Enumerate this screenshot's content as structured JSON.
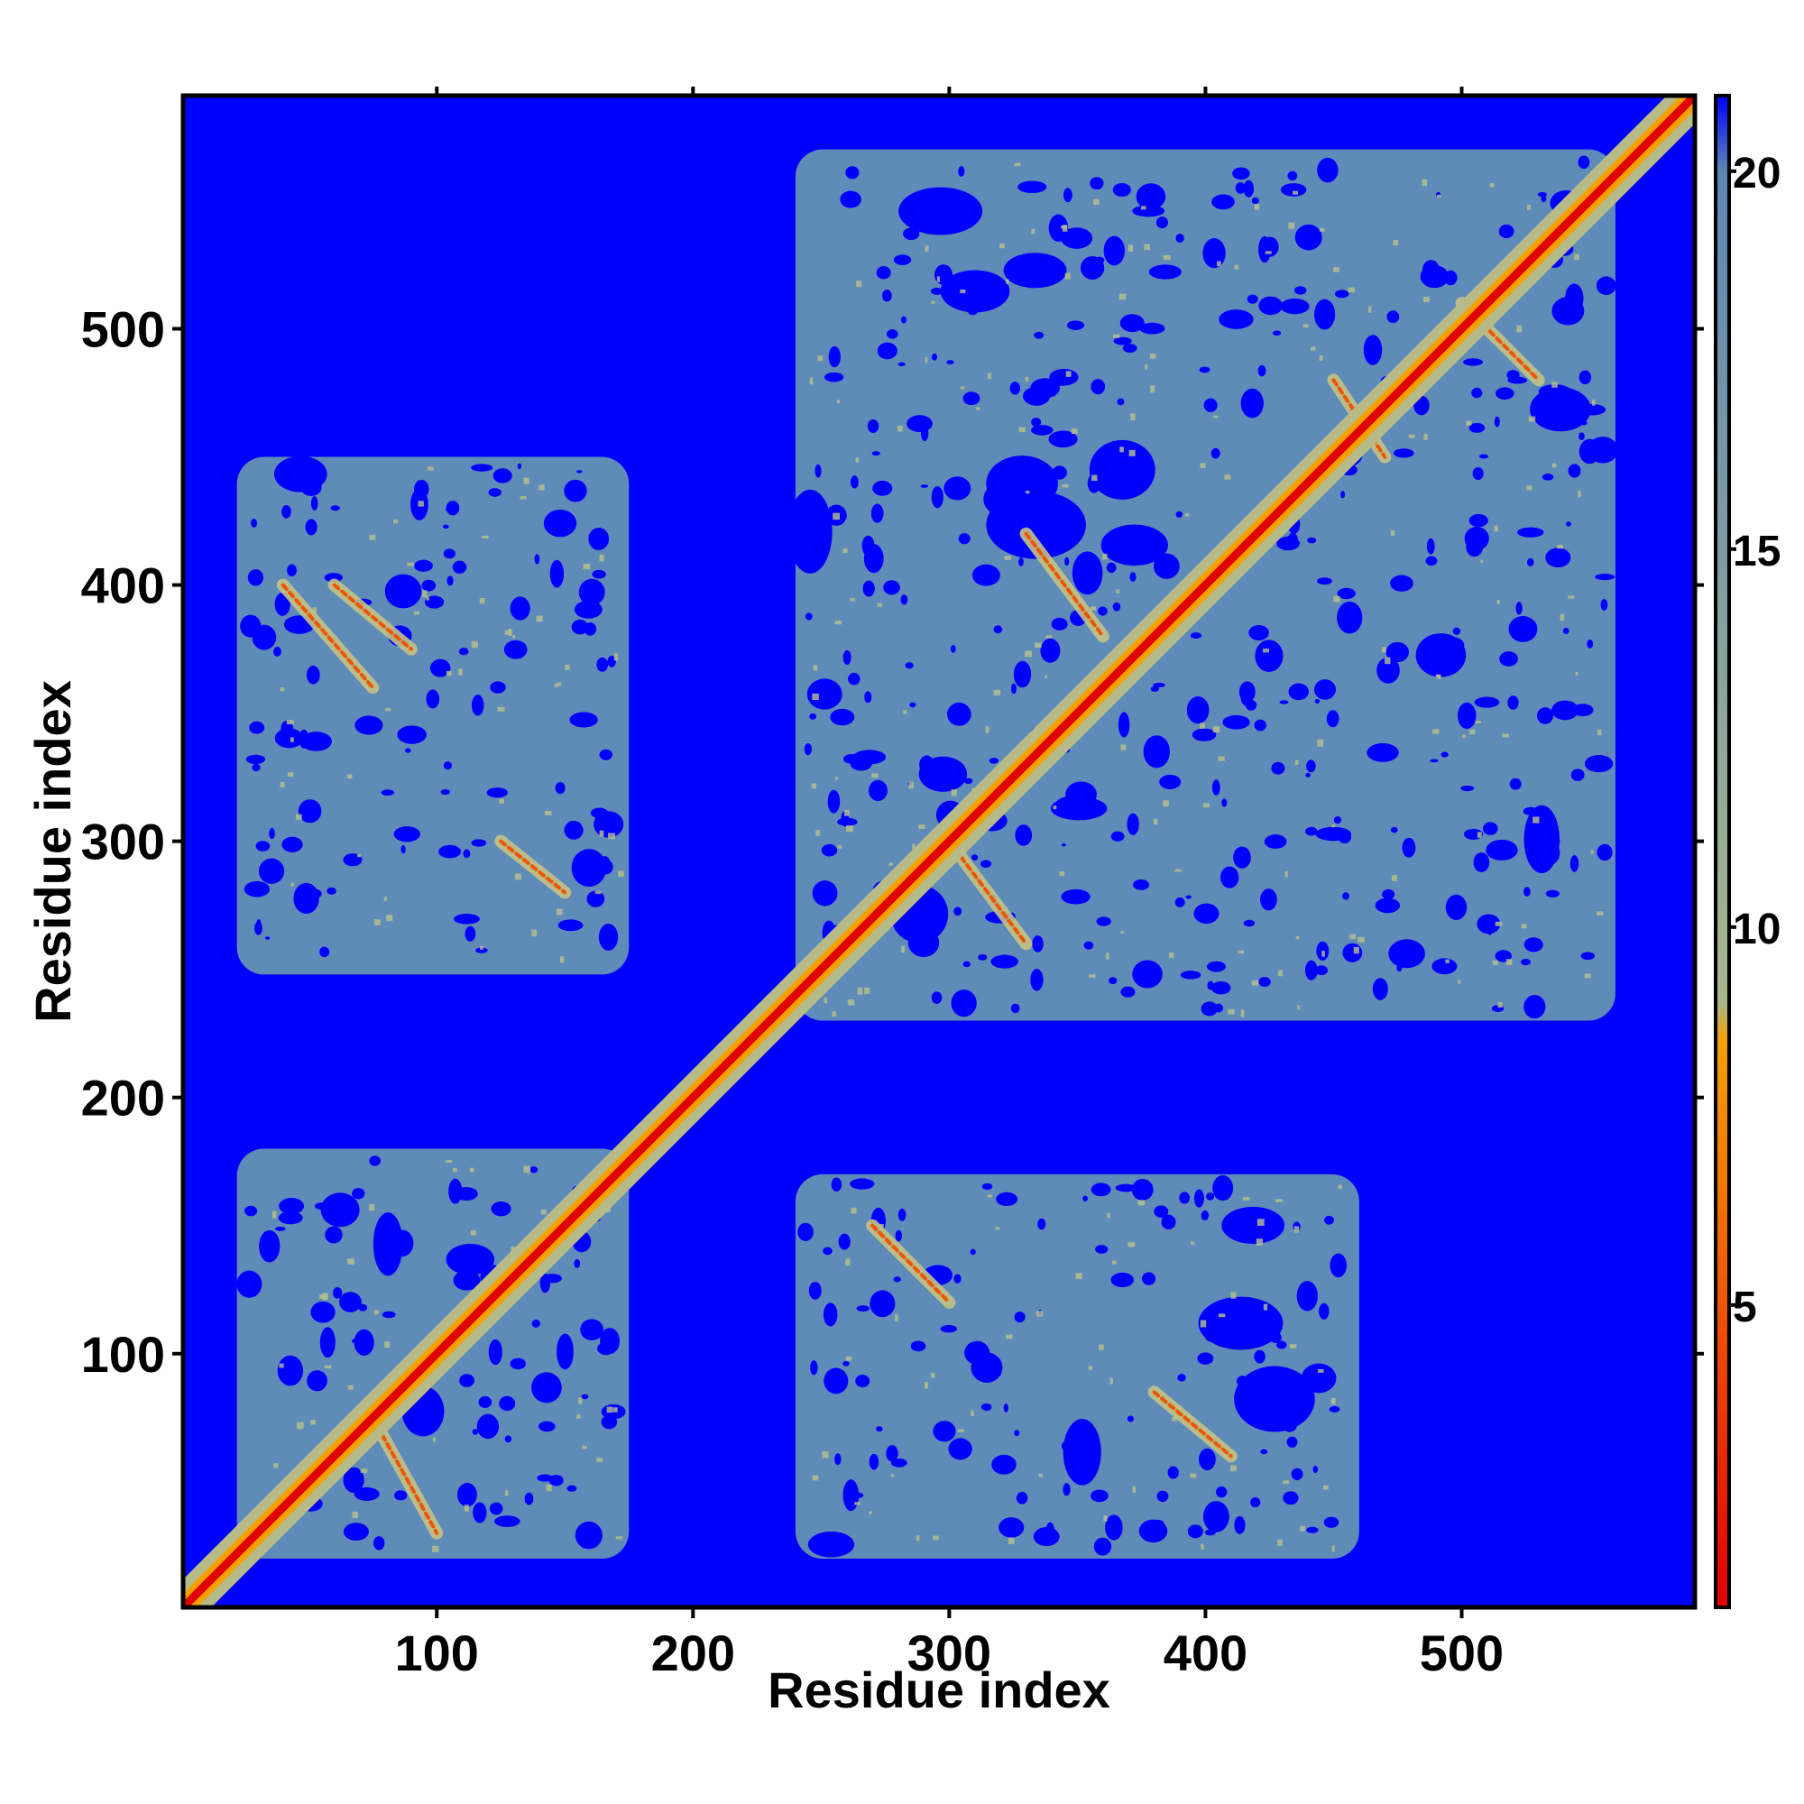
{
  "chart_data": {
    "type": "heatmap",
    "title": "",
    "xlabel": "Residue index",
    "ylabel": "Residue index",
    "xlim": [
      1,
      591
    ],
    "ylim": [
      1,
      591
    ],
    "x_ticks": [
      100,
      200,
      300,
      400,
      500
    ],
    "y_ticks": [
      100,
      200,
      300,
      400,
      500
    ],
    "colorbar": {
      "range": [
        1,
        21
      ],
      "ticks": [
        5,
        10,
        15,
        20
      ],
      "stops": [
        {
          "value": 1,
          "color": "#e00000"
        },
        {
          "value": 5,
          "color": "#ee5500"
        },
        {
          "value": 8.5,
          "color": "#f5a000"
        },
        {
          "value": 9,
          "color": "#a7b68d"
        },
        {
          "value": 20,
          "color": "#5d87b5"
        },
        {
          "value": 21,
          "color": "#0000ff"
        }
      ]
    },
    "background_color": "#0000ff",
    "contact_color": "#5f8bb8",
    "diagonal_color": "#e00000",
    "contact_blocks": [
      {
        "x": [
          22,
          175
        ],
        "y": [
          20,
          180
        ]
      },
      {
        "x": [
          22,
          175
        ],
        "y": [
          248,
          450
        ]
      },
      {
        "x": [
          240,
          460
        ],
        "y": [
          20,
          170
        ]
      },
      {
        "x": [
          240,
          560
        ],
        "y": [
          230,
          570
        ]
      }
    ],
    "secondary_contact_lines": [
      {
        "x": [
          40,
          75
        ],
        "y": [
          360,
          400
        ]
      },
      {
        "x": [
          60,
          90
        ],
        "y": [
          375,
          400
        ]
      },
      {
        "x": [
          75,
          100
        ],
        "y": [
          30,
          75
        ]
      },
      {
        "x": [
          125,
          150
        ],
        "y": [
          280,
          300
        ]
      },
      {
        "x": [
          300,
          330
        ],
        "y": [
          260,
          300
        ]
      },
      {
        "x": [
          330,
          360
        ],
        "y": [
          380,
          420
        ]
      },
      {
        "x": [
          270,
          300
        ],
        "y": [
          120,
          150
        ]
      },
      {
        "x": [
          380,
          410
        ],
        "y": [
          60,
          85
        ]
      },
      {
        "x": [
          450,
          470
        ],
        "y": [
          450,
          480
        ]
      },
      {
        "x": [
          500,
          530
        ],
        "y": [
          480,
          510
        ]
      }
    ]
  }
}
